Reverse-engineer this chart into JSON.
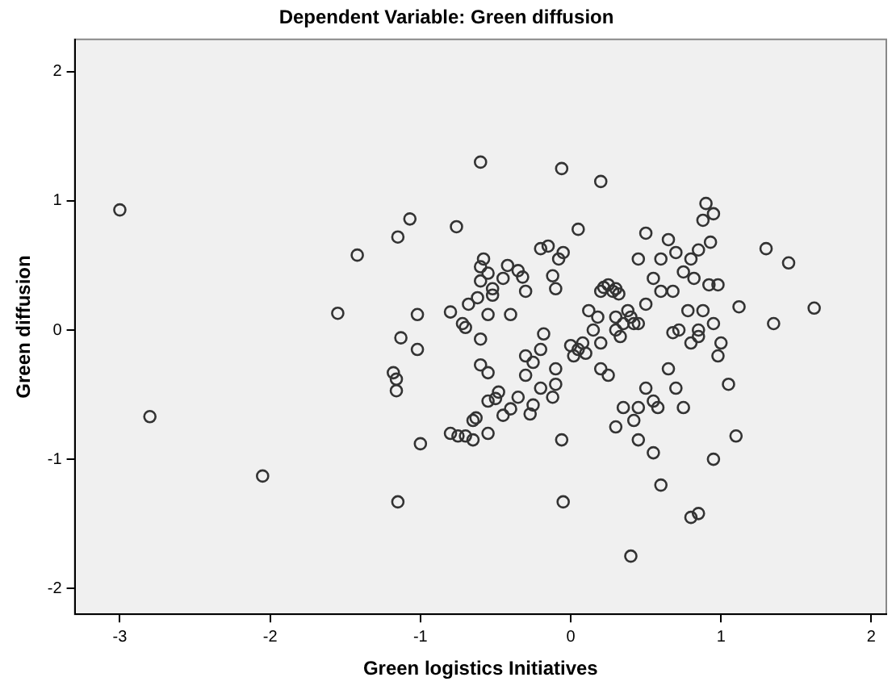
{
  "chart_data": {
    "type": "scatter",
    "title": "Dependent Variable: Green diffusion",
    "xlabel": "Green logistics Initiatives",
    "ylabel": "Green diffusion",
    "xlim": [
      -3.3,
      2.1
    ],
    "xticks": [
      -3,
      -2,
      -1,
      0,
      1,
      2
    ],
    "ylim": [
      -2.2,
      2.25
    ],
    "yticks": [
      -2,
      -1,
      0,
      1,
      2
    ],
    "grid": false,
    "marker": "circle",
    "series": [
      {
        "color": "#333333",
        "x": [
          -3.0,
          -2.8,
          -2.05,
          -1.55,
          -1.42,
          -1.15,
          -1.07,
          -1.02,
          -1.02,
          -1.13,
          -1.18,
          -1.16,
          -1.16,
          -1.15,
          -1.0,
          -0.76,
          -0.6,
          -0.8,
          -0.72,
          -0.7,
          -0.68,
          -0.62,
          -0.6,
          -0.58,
          -0.6,
          -0.55,
          -0.52,
          -0.52,
          -0.55,
          -0.6,
          -0.6,
          -0.55,
          -0.55,
          -0.5,
          -0.48,
          -0.45,
          -0.42,
          -0.35,
          -0.32,
          -0.4,
          -0.3,
          -0.2,
          -0.15,
          -0.08,
          -0.05,
          -0.1,
          -0.12,
          0.05,
          -0.06,
          0.2,
          -0.55,
          -0.63,
          -0.65,
          -0.7,
          -0.65,
          -0.75,
          -0.8,
          -0.3,
          -0.35,
          -0.4,
          -0.45,
          -0.2,
          -0.2,
          -0.18,
          -0.1,
          -0.1,
          -0.12,
          -0.25,
          -0.27,
          -0.06,
          -0.05,
          -0.25,
          -0.3,
          0.0,
          0.05,
          0.08,
          0.02,
          0.1,
          0.12,
          0.18,
          0.2,
          0.22,
          0.25,
          0.28,
          0.3,
          0.32,
          0.3,
          0.3,
          0.33,
          0.35,
          0.38,
          0.4,
          0.42,
          0.45,
          0.2,
          0.25,
          0.2,
          0.15,
          0.45,
          0.5,
          0.6,
          0.65,
          0.7,
          0.68,
          0.75,
          0.8,
          0.85,
          0.88,
          0.9,
          0.95,
          0.93,
          0.78,
          0.88,
          0.85,
          0.85,
          0.95,
          1.0,
          0.98,
          0.75,
          1.12,
          1.05,
          1.1,
          0.95,
          1.3,
          1.45,
          1.62,
          1.35,
          0.65,
          0.7,
          0.8,
          0.85,
          0.4,
          0.6,
          0.55,
          0.58,
          0.45,
          0.42,
          0.35,
          0.3,
          0.45,
          0.55,
          0.5,
          0.5,
          0.55,
          0.6,
          0.68,
          0.72,
          0.8,
          0.82,
          0.92,
          0.98
        ],
        "values": [
          0.93,
          -0.67,
          -1.13,
          0.13,
          0.58,
          0.72,
          0.86,
          0.12,
          -0.15,
          -0.06,
          -0.33,
          -0.38,
          -0.47,
          -1.33,
          -0.88,
          0.8,
          1.3,
          0.14,
          0.05,
          0.02,
          0.2,
          0.25,
          0.38,
          0.55,
          0.49,
          0.44,
          0.32,
          0.27,
          0.12,
          -0.07,
          -0.27,
          -0.33,
          -0.55,
          -0.53,
          -0.48,
          0.4,
          0.5,
          0.46,
          0.41,
          0.12,
          0.3,
          0.63,
          0.65,
          0.55,
          0.6,
          0.32,
          0.42,
          0.78,
          1.25,
          1.15,
          -0.8,
          -0.68,
          -0.7,
          -0.82,
          -0.85,
          -0.82,
          -0.8,
          -0.35,
          -0.52,
          -0.61,
          -0.66,
          -0.45,
          -0.15,
          -0.03,
          -0.3,
          -0.42,
          -0.52,
          -0.58,
          -0.65,
          -0.85,
          -1.33,
          -0.25,
          -0.2,
          -0.12,
          -0.15,
          -0.1,
          -0.2,
          -0.18,
          0.15,
          0.1,
          0.3,
          0.33,
          0.35,
          0.3,
          0.32,
          0.28,
          0.1,
          0.0,
          -0.05,
          0.05,
          0.15,
          0.1,
          0.05,
          0.05,
          -0.3,
          -0.35,
          -0.1,
          0.0,
          0.55,
          0.75,
          0.55,
          0.7,
          0.6,
          0.3,
          0.45,
          0.55,
          0.62,
          0.85,
          0.98,
          0.9,
          0.68,
          0.15,
          0.15,
          0.0,
          -0.05,
          0.05,
          -0.1,
          -0.2,
          -0.6,
          0.18,
          -0.42,
          -0.82,
          -1.0,
          0.63,
          0.52,
          0.17,
          0.05,
          -0.3,
          -0.45,
          -1.45,
          -1.42,
          -1.75,
          -1.2,
          -0.95,
          -0.6,
          -0.6,
          -0.7,
          -0.6,
          -0.75,
          -0.85,
          -0.55,
          -0.45,
          0.2,
          0.4,
          0.3,
          -0.02,
          0.0,
          -0.1,
          0.4,
          0.35,
          0.35
        ]
      }
    ]
  }
}
